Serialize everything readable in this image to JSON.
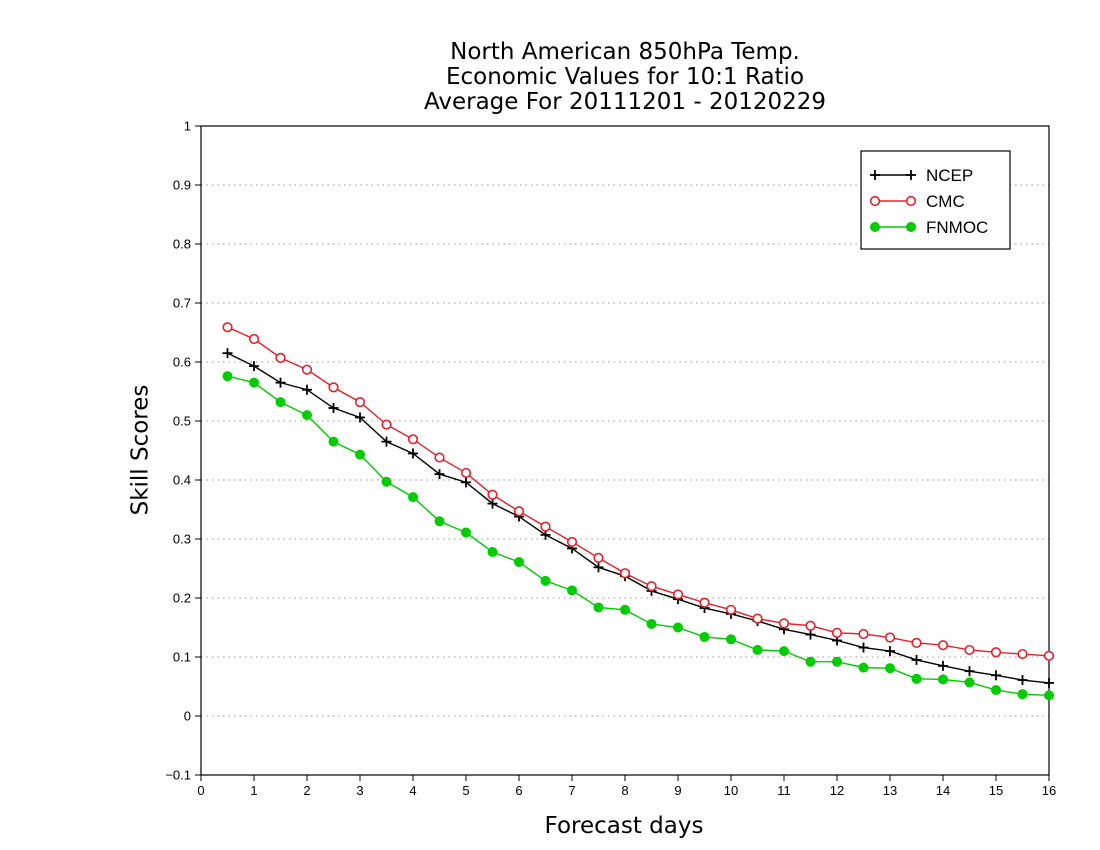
{
  "chart_data": {
    "type": "line",
    "title": [
      "North American 850hPa Temp.",
      "Economic Values for 10:1 Ratio",
      "Average For 20111201 - 20120229"
    ],
    "xlabel": "Forecast days",
    "ylabel": "Skill Scores",
    "xlim": [
      0,
      16
    ],
    "ylim": [
      -0.1,
      1
    ],
    "xticks": [
      "0",
      "1",
      "2",
      "3",
      "4",
      "5",
      "6",
      "7",
      "8",
      "9",
      "10",
      "11",
      "12",
      "13",
      "14",
      "15",
      "16"
    ],
    "yticks": [
      "−0.1",
      "0",
      "0.1",
      "0.2",
      "0.3",
      "0.4",
      "0.5",
      "0.6",
      "0.7",
      "0.8",
      "0.9",
      "1"
    ],
    "grid": "horizontal-dotted",
    "legend_position": "top-right",
    "x": [
      0.5,
      1,
      1.5,
      2,
      2.5,
      3,
      3.5,
      4,
      4.5,
      5,
      5.5,
      6,
      6.5,
      7,
      7.5,
      8,
      8.5,
      9,
      9.5,
      10,
      10.5,
      11,
      11.5,
      12,
      12.5,
      13,
      13.5,
      14,
      14.5,
      15,
      15.5,
      16
    ],
    "series": [
      {
        "name": "NCEP",
        "color": "#000000",
        "marker": "plus",
        "values": [
          0.615,
          0.593,
          0.565,
          0.553,
          0.522,
          0.506,
          0.465,
          0.445,
          0.41,
          0.396,
          0.36,
          0.338,
          0.307,
          0.284,
          0.252,
          0.237,
          0.212,
          0.198,
          0.183,
          0.173,
          0.161,
          0.147,
          0.138,
          0.128,
          0.116,
          0.11,
          0.095,
          0.085,
          0.076,
          0.069,
          0.061,
          0.056
        ]
      },
      {
        "name": "CMC",
        "color": "#e8202a",
        "marker": "open-circle",
        "values": [
          0.659,
          0.639,
          0.607,
          0.587,
          0.557,
          0.532,
          0.494,
          0.469,
          0.438,
          0.412,
          0.375,
          0.347,
          0.321,
          0.295,
          0.268,
          0.242,
          0.22,
          0.206,
          0.192,
          0.18,
          0.165,
          0.157,
          0.153,
          0.141,
          0.139,
          0.133,
          0.124,
          0.12,
          0.112,
          0.108,
          0.105,
          0.102
        ]
      },
      {
        "name": "FNMOC",
        "color": "#00cc00",
        "marker": "filled-circle",
        "values": [
          0.576,
          0.565,
          0.532,
          0.51,
          0.465,
          0.443,
          0.397,
          0.371,
          0.33,
          0.311,
          0.278,
          0.261,
          0.229,
          0.213,
          0.184,
          0.18,
          0.156,
          0.15,
          0.134,
          0.13,
          0.112,
          0.11,
          0.092,
          0.092,
          0.082,
          0.081,
          0.063,
          0.062,
          0.057,
          0.044,
          0.037,
          0.035
        ]
      }
    ]
  }
}
